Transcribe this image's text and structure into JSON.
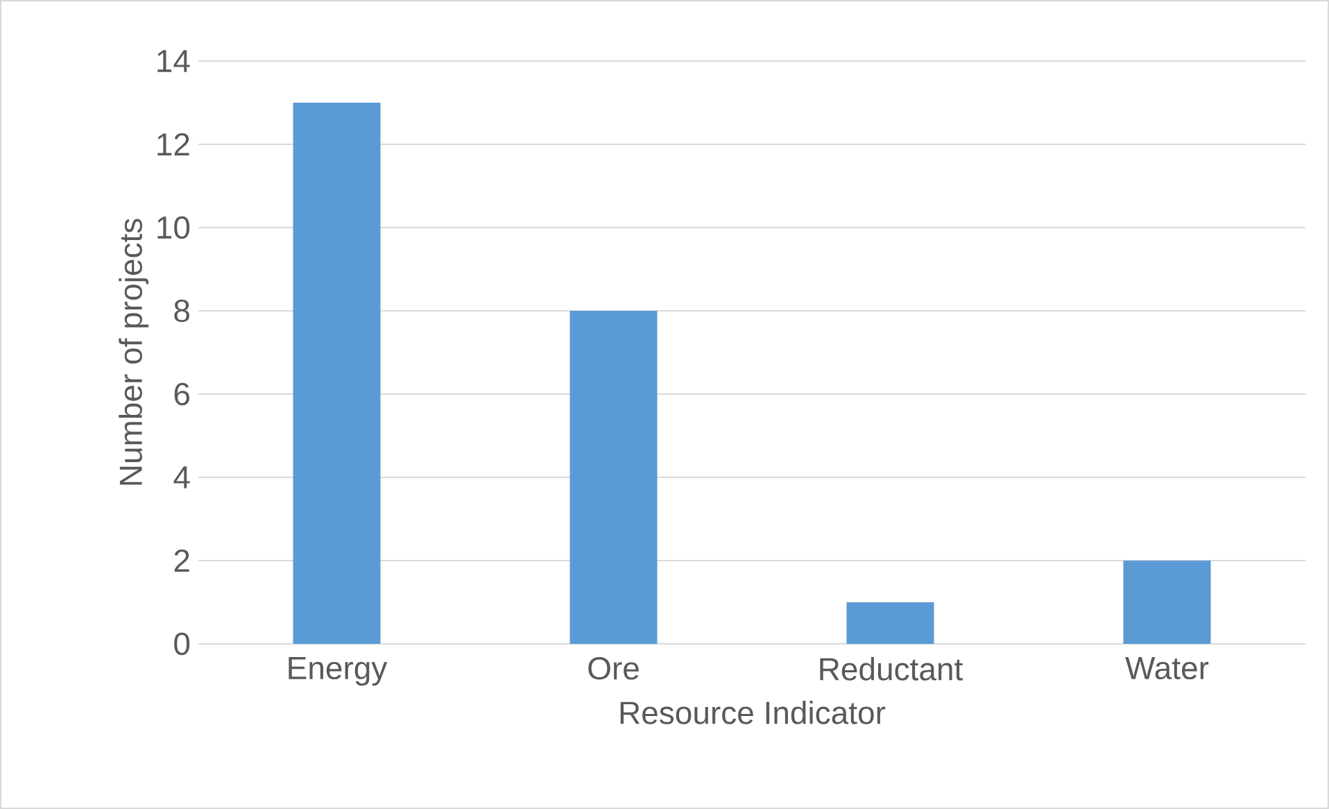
{
  "chart_data": {
    "type": "bar",
    "xlabel": "Resource Indicator",
    "ylabel": "Number of projects",
    "categories": [
      "Energy",
      "Ore",
      "Reductant",
      "Water"
    ],
    "values": [
      13,
      8,
      1,
      2
    ],
    "color": "#5b9bd5",
    "ylim": [
      0,
      14
    ],
    "yticks": [
      0,
      2,
      4,
      6,
      8,
      10,
      12,
      14
    ],
    "grid": "y"
  }
}
